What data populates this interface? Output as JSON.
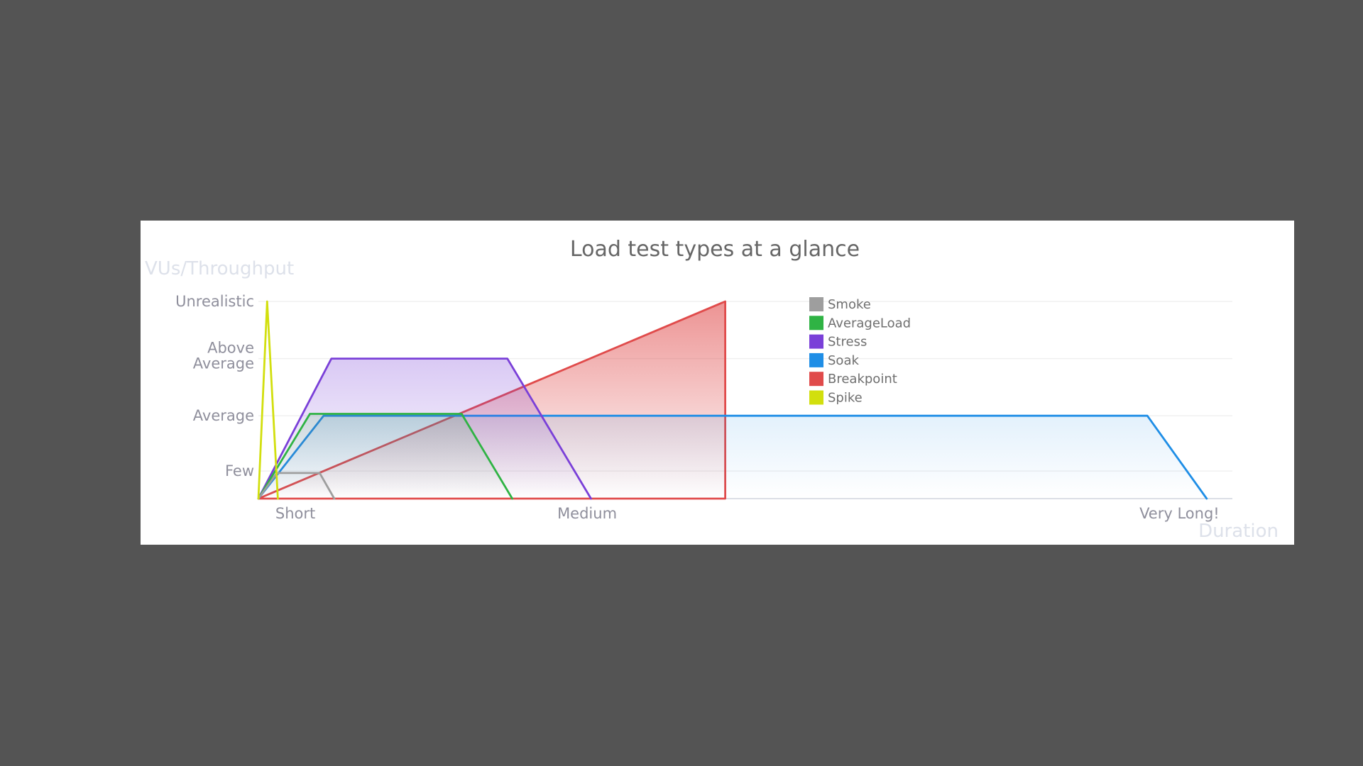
{
  "chart_data": {
    "type": "area",
    "title": "Load test types at a glance",
    "xlabel": "Duration",
    "ylabel": "VUs/Throughput",
    "xlim": [
      0,
      100
    ],
    "ylim": [
      0,
      100
    ],
    "x_ticks": [
      {
        "value": 3.8,
        "label": "Short"
      },
      {
        "value": 33.8,
        "label": "Medium"
      },
      {
        "value": 94.7,
        "label": "Very Long!"
      }
    ],
    "y_ticks": [
      {
        "value": 14,
        "label": "Few"
      },
      {
        "value": 42,
        "label": "Average"
      },
      {
        "value": 71,
        "label": "Above Average"
      },
      {
        "value": 100,
        "label": "Unrealistic"
      }
    ],
    "legend_position": "top-center",
    "grid": true,
    "series": [
      {
        "name": "Breakpoint",
        "color": "#e04b4b",
        "fill_opacity": 0.6,
        "closed": true,
        "points": [
          [
            0,
            0
          ],
          [
            48,
            100
          ],
          [
            48,
            0
          ]
        ]
      },
      {
        "name": "Soak",
        "color": "#1f8ee6",
        "fill_opacity": 0.3,
        "closed": false,
        "points": [
          [
            0,
            0
          ],
          [
            6.7,
            42
          ],
          [
            91.4,
            42
          ],
          [
            97.5,
            0
          ]
        ]
      },
      {
        "name": "Stress",
        "color": "#7a40d8",
        "fill_opacity": 0.4,
        "closed": false,
        "points": [
          [
            0,
            0
          ],
          [
            7.5,
            71
          ],
          [
            25.6,
            71
          ],
          [
            34.2,
            0
          ]
        ]
      },
      {
        "name": "AverageLoad",
        "color": "#2fb344",
        "fill_opacity": 0.35,
        "closed": false,
        "points": [
          [
            0,
            0
          ],
          [
            5.3,
            43
          ],
          [
            20.9,
            43
          ],
          [
            26.1,
            0
          ]
        ]
      },
      {
        "name": "Smoke",
        "color": "#9e9e9e",
        "fill_opacity": 0.5,
        "closed": false,
        "points": [
          [
            0,
            0
          ],
          [
            1.9,
            13
          ],
          [
            6.3,
            13
          ],
          [
            7.8,
            0
          ]
        ]
      },
      {
        "name": "Spike",
        "color": "#d2df0e",
        "fill_opacity": 0.0,
        "closed": false,
        "points": [
          [
            0,
            0
          ],
          [
            0.9,
            100
          ],
          [
            2.0,
            0
          ]
        ]
      }
    ],
    "legend_order": [
      "Smoke",
      "AverageLoad",
      "Stress",
      "Soak",
      "Breakpoint",
      "Spike"
    ]
  }
}
